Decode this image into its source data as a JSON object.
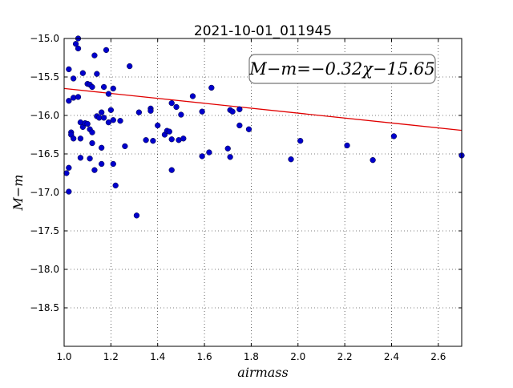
{
  "chart_data": {
    "type": "scatter",
    "title": "2021-10-01_011945",
    "xlabel": "airmass",
    "ylabel": "M−m",
    "xlim": [
      1.0,
      2.7
    ],
    "ylim": [
      -15.0,
      -19.0
    ],
    "y_inverted": true,
    "grid": true,
    "x_ticks": [
      1.0,
      1.2,
      1.4,
      1.6,
      1.8,
      2.0,
      2.2,
      2.4,
      2.6
    ],
    "x_tick_labels": [
      "1.0",
      "1.2",
      "1.4",
      "1.6",
      "1.8",
      "2.0",
      "2.2",
      "2.4",
      "2.6"
    ],
    "y_ticks": [
      -15.0,
      -15.5,
      -16.0,
      -16.5,
      -17.0,
      -17.5,
      -18.0,
      -18.5
    ],
    "y_tick_labels": [
      "−15.0",
      "−15.5",
      "−16.0",
      "−16.5",
      "−17.0",
      "−17.5",
      "−18.0",
      "−18.5"
    ],
    "annotation": "M−m=−0.32χ−15.65",
    "fit": {
      "slope": -0.32,
      "intercept": -15.65,
      "color": "#e00000"
    },
    "point_color": "#0000cc",
    "points": [
      [
        1.01,
        -16.75
      ],
      [
        1.02,
        -16.68
      ],
      [
        1.02,
        -16.99
      ],
      [
        1.02,
        -15.4
      ],
      [
        1.02,
        -15.81
      ],
      [
        1.03,
        -16.22
      ],
      [
        1.03,
        -16.25
      ],
      [
        1.04,
        -16.3
      ],
      [
        1.04,
        -15.77
      ],
      [
        1.04,
        -15.52
      ],
      [
        1.05,
        -15.07
      ],
      [
        1.06,
        -15.0
      ],
      [
        1.06,
        -15.13
      ],
      [
        1.06,
        -15.76
      ],
      [
        1.07,
        -16.3
      ],
      [
        1.07,
        -16.09
      ],
      [
        1.07,
        -16.55
      ],
      [
        1.08,
        -16.15
      ],
      [
        1.08,
        -15.45
      ],
      [
        1.09,
        -16.1
      ],
      [
        1.1,
        -16.11
      ],
      [
        1.1,
        -15.59
      ],
      [
        1.11,
        -16.56
      ],
      [
        1.11,
        -16.18
      ],
      [
        1.11,
        -15.6
      ],
      [
        1.12,
        -16.22
      ],
      [
        1.12,
        -16.36
      ],
      [
        1.12,
        -15.63
      ],
      [
        1.13,
        -15.22
      ],
      [
        1.13,
        -16.71
      ],
      [
        1.14,
        -16.01
      ],
      [
        1.14,
        -15.46
      ],
      [
        1.15,
        -16.03
      ],
      [
        1.16,
        -15.96
      ],
      [
        1.16,
        -16.42
      ],
      [
        1.16,
        -16.63
      ],
      [
        1.17,
        -16.03
      ],
      [
        1.17,
        -15.63
      ],
      [
        1.18,
        -15.15
      ],
      [
        1.19,
        -15.72
      ],
      [
        1.19,
        -16.09
      ],
      [
        1.2,
        -15.93
      ],
      [
        1.21,
        -16.63
      ],
      [
        1.21,
        -16.06
      ],
      [
        1.21,
        -15.65
      ],
      [
        1.22,
        -16.91
      ],
      [
        1.24,
        -16.07
      ],
      [
        1.26,
        -16.4
      ],
      [
        1.28,
        -15.36
      ],
      [
        1.31,
        -17.3
      ],
      [
        1.32,
        -15.96
      ],
      [
        1.35,
        -16.32
      ],
      [
        1.37,
        -15.91
      ],
      [
        1.37,
        -15.94
      ],
      [
        1.38,
        -16.33
      ],
      [
        1.4,
        -16.13
      ],
      [
        1.43,
        -16.25
      ],
      [
        1.44,
        -16.2
      ],
      [
        1.45,
        -16.21
      ],
      [
        1.46,
        -16.31
      ],
      [
        1.46,
        -16.71
      ],
      [
        1.46,
        -15.84
      ],
      [
        1.48,
        -15.89
      ],
      [
        1.49,
        -16.32
      ],
      [
        1.5,
        -15.99
      ],
      [
        1.51,
        -16.3
      ],
      [
        1.55,
        -15.75
      ],
      [
        1.59,
        -15.95
      ],
      [
        1.59,
        -16.53
      ],
      [
        1.62,
        -16.48
      ],
      [
        1.63,
        -15.64
      ],
      [
        1.7,
        -16.43
      ],
      [
        1.71,
        -15.93
      ],
      [
        1.71,
        -16.54
      ],
      [
        1.72,
        -15.95
      ],
      [
        1.75,
        -16.13
      ],
      [
        1.75,
        -15.92
      ],
      [
        1.79,
        -16.18
      ],
      [
        1.97,
        -16.57
      ],
      [
        2.01,
        -16.33
      ],
      [
        2.21,
        -16.39
      ],
      [
        2.32,
        -16.58
      ],
      [
        2.41,
        -16.27
      ],
      [
        2.7,
        -16.52
      ]
    ]
  }
}
